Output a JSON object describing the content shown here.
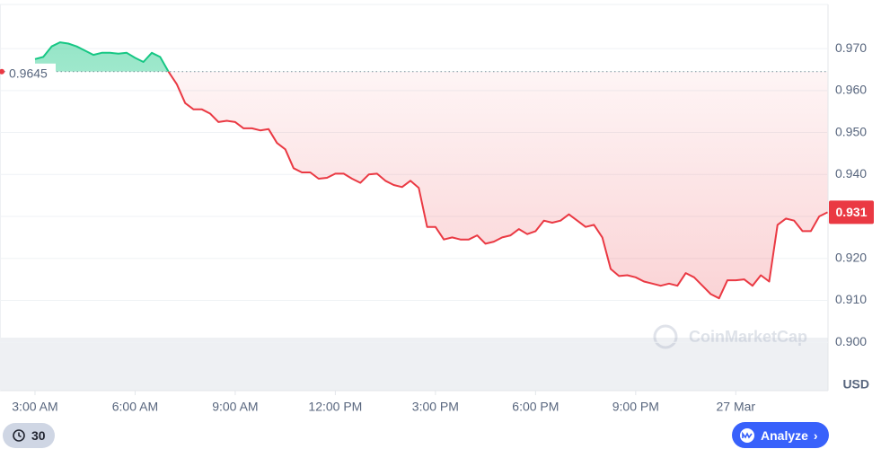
{
  "chart_data": {
    "type": "line",
    "baseline": 0.9645,
    "baseline_label": "0.9645",
    "unit": "USD",
    "watermark": "CoinMarketCap",
    "xlim": [
      0,
      99
    ],
    "xticks": [
      {
        "value": 4,
        "label": "3:00 AM"
      },
      {
        "value": 16,
        "label": "6:00 AM"
      },
      {
        "value": 28,
        "label": "9:00 AM"
      },
      {
        "value": 40,
        "label": "12:00 PM"
      },
      {
        "value": 52,
        "label": "3:00 PM"
      },
      {
        "value": 64,
        "label": "6:00 PM"
      },
      {
        "value": 76,
        "label": "9:00 PM"
      },
      {
        "value": 88,
        "label": "27 Mar"
      }
    ],
    "ylim": [
      0.8885,
      0.9805
    ],
    "yticks": [
      {
        "value": 0.97,
        "label": "0.970"
      },
      {
        "value": 0.96,
        "label": "0.960"
      },
      {
        "value": 0.95,
        "label": "0.950"
      },
      {
        "value": 0.94,
        "label": "0.940"
      },
      {
        "value": 0.93,
        "label": "0.930"
      },
      {
        "value": 0.92,
        "label": "0.920"
      },
      {
        "value": 0.91,
        "label": "0.910"
      },
      {
        "value": 0.9,
        "label": "0.900"
      }
    ],
    "grid": true,
    "up_color": "#16c784",
    "down_color": "#ea3943",
    "series": [
      {
        "name": "Price",
        "values": [
          null,
          null,
          null,
          null,
          0.9675,
          0.968,
          0.9705,
          0.9715,
          0.9712,
          0.9705,
          0.9695,
          0.9685,
          0.969,
          0.969,
          0.9688,
          0.969,
          0.9678,
          0.9668,
          0.969,
          0.968,
          0.9645,
          0.9615,
          0.957,
          0.9555,
          0.9555,
          0.9545,
          0.9525,
          0.9528,
          0.9525,
          0.951,
          0.951,
          0.9505,
          0.9508,
          0.9475,
          0.946,
          0.9415,
          0.9405,
          0.9405,
          0.939,
          0.9392,
          0.9402,
          0.9402,
          0.939,
          0.938,
          0.94,
          0.9402,
          0.9385,
          0.9375,
          0.937,
          0.9385,
          0.9368,
          0.9275,
          0.9275,
          0.9245,
          0.925,
          0.9245,
          0.9245,
          0.9255,
          0.9235,
          0.924,
          0.925,
          0.9255,
          0.927,
          0.9258,
          0.9265,
          0.929,
          0.9285,
          0.929,
          0.9305,
          0.929,
          0.9275,
          0.928,
          0.925,
          0.9175,
          0.9158,
          0.916,
          0.9155,
          0.9145,
          0.914,
          0.9135,
          0.914,
          0.9135,
          0.9165,
          0.9155,
          0.9135,
          0.9115,
          0.9105,
          0.9148,
          0.9148,
          0.915,
          0.9135,
          0.916,
          0.9145,
          0.928,
          0.9295,
          0.929,
          0.9265,
          0.9265,
          0.93,
          0.931
        ]
      }
    ],
    "buttons": {
      "range": "30",
      "analyze": "Analyze"
    }
  }
}
